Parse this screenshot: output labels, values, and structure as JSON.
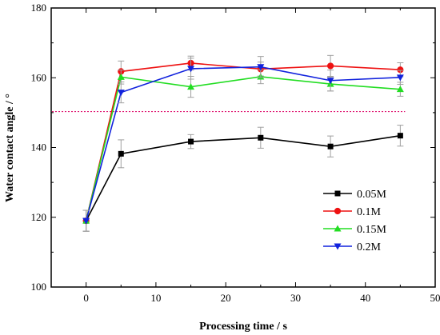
{
  "chart_data": {
    "type": "line",
    "title": "",
    "xlabel": "Processing  time / s",
    "ylabel": "Water contact angle / °",
    "xlim": [
      -5,
      50
    ],
    "ylim": [
      100,
      180
    ],
    "xticks": [
      0,
      10,
      20,
      30,
      40,
      50
    ],
    "yticks": [
      100,
      120,
      140,
      160,
      180
    ],
    "grid": false,
    "legend_position": "lower-right",
    "reference_line": {
      "y": 150.3,
      "style": "dotted",
      "color": "#e0106e"
    },
    "x": [
      0,
      5,
      15,
      25,
      35,
      45
    ],
    "series": [
      {
        "name": "0.05M",
        "color": "#000000",
        "marker": "square",
        "values": [
          119,
          138.2,
          141.7,
          142.8,
          140.3,
          143.4
        ],
        "errors": [
          3,
          4,
          2,
          3,
          3,
          3
        ]
      },
      {
        "name": "0.1M",
        "color": "#ee1111",
        "marker": "circle",
        "values": [
          119,
          161.8,
          164.2,
          162.5,
          163.4,
          162.3
        ],
        "errors": [
          3,
          3,
          2,
          2,
          3,
          2
        ]
      },
      {
        "name": "0.15M",
        "color": "#22dd22",
        "marker": "triangle-up",
        "values": [
          119,
          160.2,
          157.4,
          160.3,
          158.2,
          156.7
        ],
        "errors": [
          3,
          2,
          3,
          2,
          2,
          2
        ]
      },
      {
        "name": "0.2M",
        "color": "#1122dd",
        "marker": "triangle-down",
        "values": [
          119,
          155.8,
          162.6,
          163.1,
          159.2,
          160.1
        ],
        "errors": [
          3,
          3,
          3,
          3,
          3,
          2
        ]
      }
    ]
  }
}
